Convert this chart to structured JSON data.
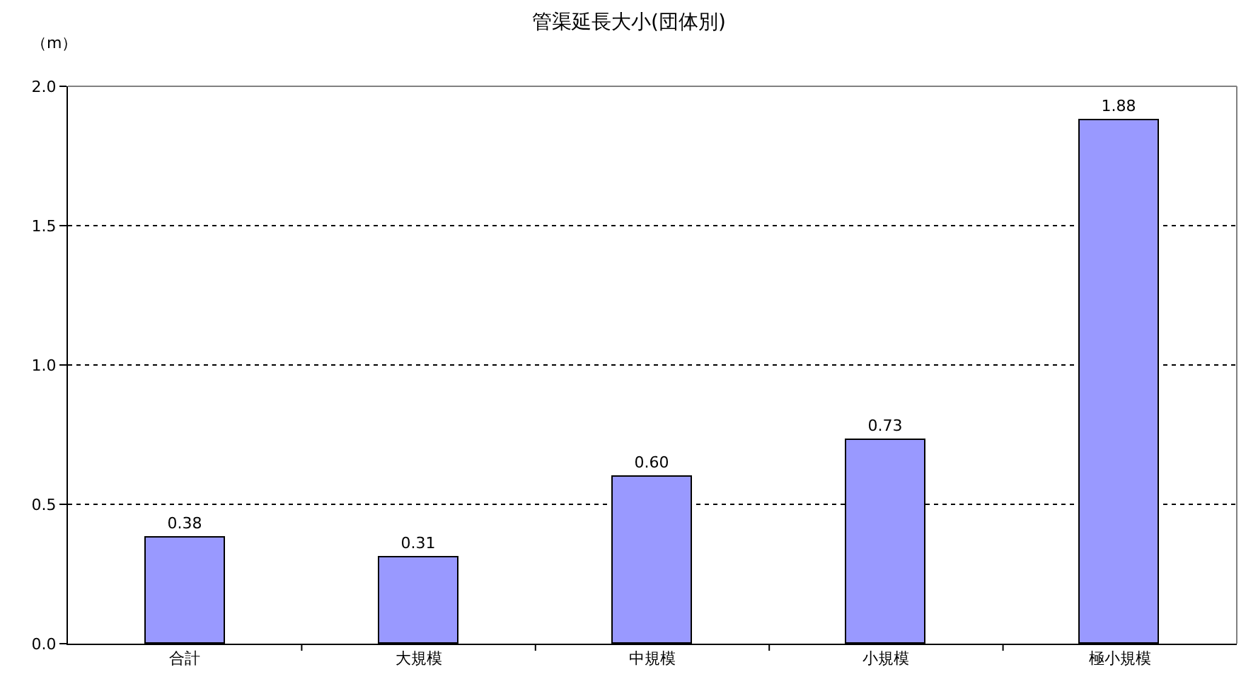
{
  "chart_data": {
    "type": "bar",
    "title": "管渠延長大小(団体別)",
    "ylabel": "（m）",
    "categories": [
      "合計",
      "大規模",
      "中規模",
      "小規模",
      "極小規模"
    ],
    "values": [
      0.38,
      0.31,
      0.6,
      0.73,
      1.88
    ],
    "value_labels": [
      "0.38",
      "0.31",
      "0.60",
      "0.73",
      "1.88"
    ],
    "color": "#9999ff",
    "ylim": [
      0,
      2.0
    ],
    "yticks": [
      {
        "value": 0,
        "label": "0.0"
      },
      {
        "value": 0.5,
        "label": "0.5"
      },
      {
        "value": 1.0,
        "label": "1.0"
      },
      {
        "value": 1.5,
        "label": "1.5"
      },
      {
        "value": 2.0,
        "label": "2.0"
      }
    ],
    "grid": "y",
    "legend": false
  }
}
